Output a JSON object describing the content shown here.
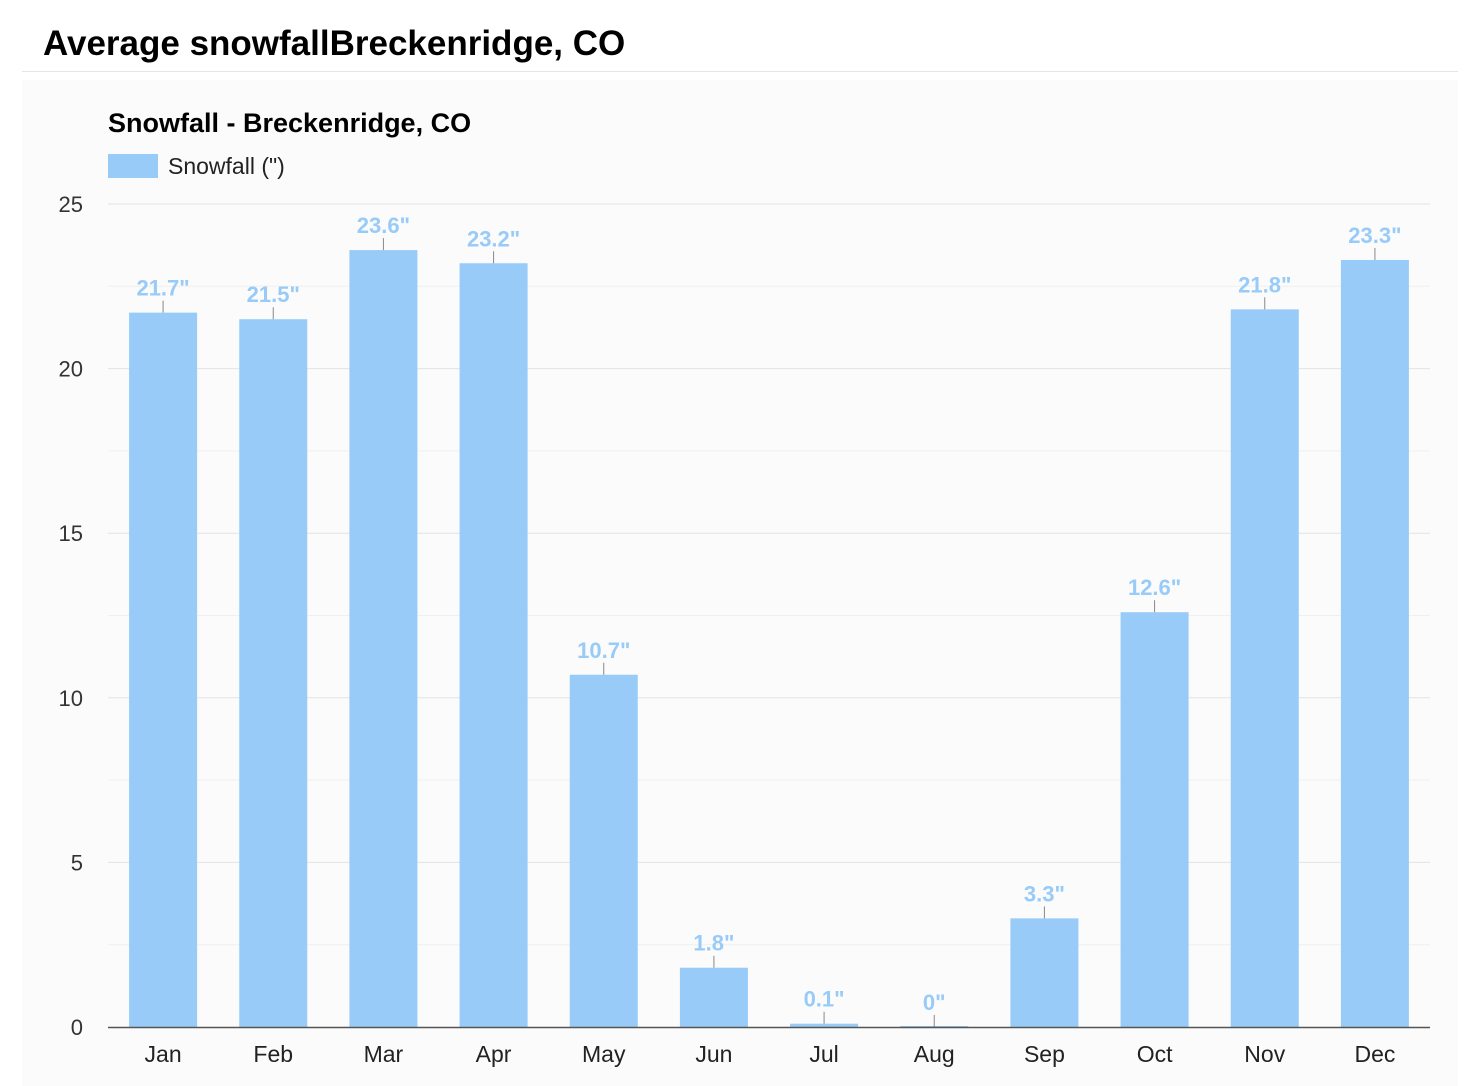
{
  "page": {
    "title": "Average snowfallBreckenridge, CO"
  },
  "colors": {
    "bar": "#98cbf8",
    "data_label": "#98cbf8",
    "grid_major": "#e3e3e3",
    "grid_minor": "#f0f0f0",
    "axis": "#555555",
    "panel_background": "#fafbfa"
  },
  "chart_data": {
    "type": "bar",
    "title": "Snowfall - Breckenridge, CO",
    "xlabel": "",
    "ylabel": "",
    "categories": [
      "Jan",
      "Feb",
      "Mar",
      "Apr",
      "May",
      "Jun",
      "Jul",
      "Aug",
      "Sep",
      "Oct",
      "Nov",
      "Dec"
    ],
    "series": [
      {
        "name": "Snowfall (\")",
        "values": [
          21.7,
          21.5,
          23.6,
          23.2,
          10.7,
          1.8,
          0.1,
          0,
          3.3,
          12.6,
          21.8,
          23.3
        ],
        "labels": [
          "21.7\"",
          "21.5\"",
          "23.6\"",
          "23.2\"",
          "10.7\"",
          "1.8\"",
          "0.1\"",
          "0\"",
          "3.3\"",
          "12.6\"",
          "21.8\"",
          "23.3\""
        ]
      }
    ],
    "ylim": [
      0,
      25
    ],
    "yticks": [
      0,
      5,
      10,
      15,
      20,
      25
    ],
    "ytick_labels": [
      "0",
      "5",
      "10",
      "15",
      "20",
      "25"
    ],
    "grid": true,
    "legend": "top-left"
  }
}
